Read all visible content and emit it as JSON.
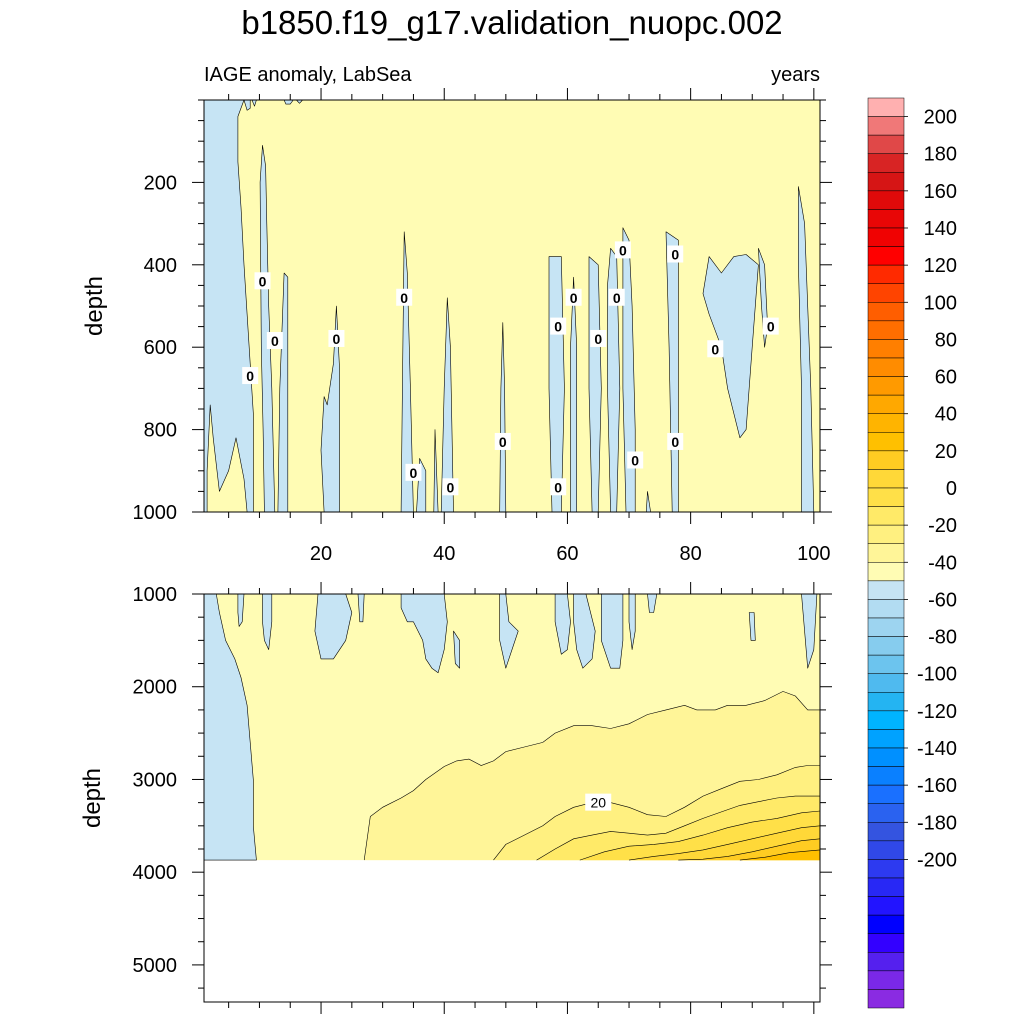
{
  "chart_data": {
    "type": "heatmap",
    "title": "b1850.f19_g17.validation_nuopc.002",
    "subtitle_left": "IAGE anomaly, LabSea",
    "subtitle_right": "years",
    "ylabel": "depth",
    "x_ticks": [
      20,
      40,
      60,
      80,
      100
    ],
    "xlim": [
      1,
      101
    ],
    "panels": [
      {
        "name": "upper",
        "ylim": [
          0,
          1000
        ],
        "y_ticks": [
          200,
          400,
          600,
          800,
          1000
        ],
        "contour_labels": [
          {
            "x": 10.5,
            "y": 440,
            "text": "0"
          },
          {
            "x": 12.5,
            "y": 585,
            "text": "0"
          },
          {
            "x": 8.5,
            "y": 670,
            "text": "0"
          },
          {
            "x": 22.5,
            "y": 580,
            "text": "0"
          },
          {
            "x": 33.5,
            "y": 480,
            "text": "0"
          },
          {
            "x": 35,
            "y": 905,
            "text": "0"
          },
          {
            "x": 41,
            "y": 940,
            "text": "0"
          },
          {
            "x": 49.5,
            "y": 830,
            "text": "0"
          },
          {
            "x": 58.5,
            "y": 550,
            "text": "0"
          },
          {
            "x": 58.5,
            "y": 940,
            "text": "0"
          },
          {
            "x": 61,
            "y": 480,
            "text": "0"
          },
          {
            "x": 65,
            "y": 580,
            "text": "0"
          },
          {
            "x": 68,
            "y": 480,
            "text": "0"
          },
          {
            "x": 69,
            "y": 365,
            "text": "0"
          },
          {
            "x": 71,
            "y": 875,
            "text": "0"
          },
          {
            "x": 77.5,
            "y": 375,
            "text": "0"
          },
          {
            "x": 77.5,
            "y": 830,
            "text": "0"
          },
          {
            "x": 84,
            "y": 605,
            "text": "0"
          },
          {
            "x": 93,
            "y": 550,
            "text": "0"
          }
        ]
      },
      {
        "name": "lower",
        "ylim": [
          1000,
          5400
        ],
        "y_ticks": [
          1000,
          2000,
          3000,
          4000,
          5000
        ],
        "data_bottom_depth": 3870,
        "contour_levels": [
          0,
          10,
          20,
          30,
          40,
          50,
          60
        ],
        "contour_labels": [
          {
            "x": 65,
            "y": 3250,
            "text": "20"
          }
        ]
      }
    ],
    "colorbar": {
      "levels": [
        -210,
        -200,
        -190,
        -180,
        -170,
        -160,
        -150,
        -140,
        -130,
        -120,
        -110,
        -100,
        -90,
        -80,
        -70,
        -60,
        -50,
        -40,
        -30,
        -20,
        -10,
        0,
        10,
        20,
        30,
        40,
        50,
        60,
        70,
        80,
        90,
        100,
        110,
        120,
        130,
        140,
        150,
        160,
        170,
        180,
        190,
        200,
        210
      ],
      "tick_labels": [
        "200",
        "180",
        "160",
        "140",
        "120",
        "100",
        "80",
        "60",
        "40",
        "20",
        "0",
        "-20",
        "-40",
        "-60",
        "-80",
        "-100",
        "-120",
        "-140",
        "-160",
        "-180",
        "-200"
      ],
      "colors": [
        "#ffb0b0",
        "#f07878",
        "#e04848",
        "#d82424",
        "#d61515",
        "#e00a0a",
        "#e80606",
        "#f00202",
        "#ff0000",
        "#ff2a00",
        "#ff4400",
        "#ff5e00",
        "#ff6e00",
        "#ff7f00",
        "#ff8c00",
        "#ff9a00",
        "#ffa800",
        "#ffb400",
        "#ffc000",
        "#ffcc22",
        "#ffd838",
        "#ffe048",
        "#ffea68",
        "#fff080",
        "#fff598",
        "#fffcb4",
        "#c6e4f4",
        "#b2dcf2",
        "#9dd4f0",
        "#86ccee",
        "#6cc4ee",
        "#4fbaef",
        "#24b4f2",
        "#00b4ff",
        "#00a2ff",
        "#0090ff",
        "#0a80ff",
        "#1a70ff",
        "#2a62f0",
        "#3454e0",
        "#3048e8",
        "#2d3af0",
        "#2828f5",
        "#2214ff",
        "#0000ff",
        "#3300ff",
        "#5520ee",
        "#7a28e8",
        "#8a2be2"
      ]
    },
    "fill_colors": {
      "positive_low": "#fffcb4",
      "negative_low": "#c6e4f4",
      "band_10_20": "#fff598",
      "band_20_30": "#fff080",
      "band_30_40": "#ffea68",
      "band_40_50": "#ffe048",
      "band_50_60": "#ffd838",
      "band_60_70": "#ffcc22",
      "band_70_80": "#ffc000"
    }
  }
}
